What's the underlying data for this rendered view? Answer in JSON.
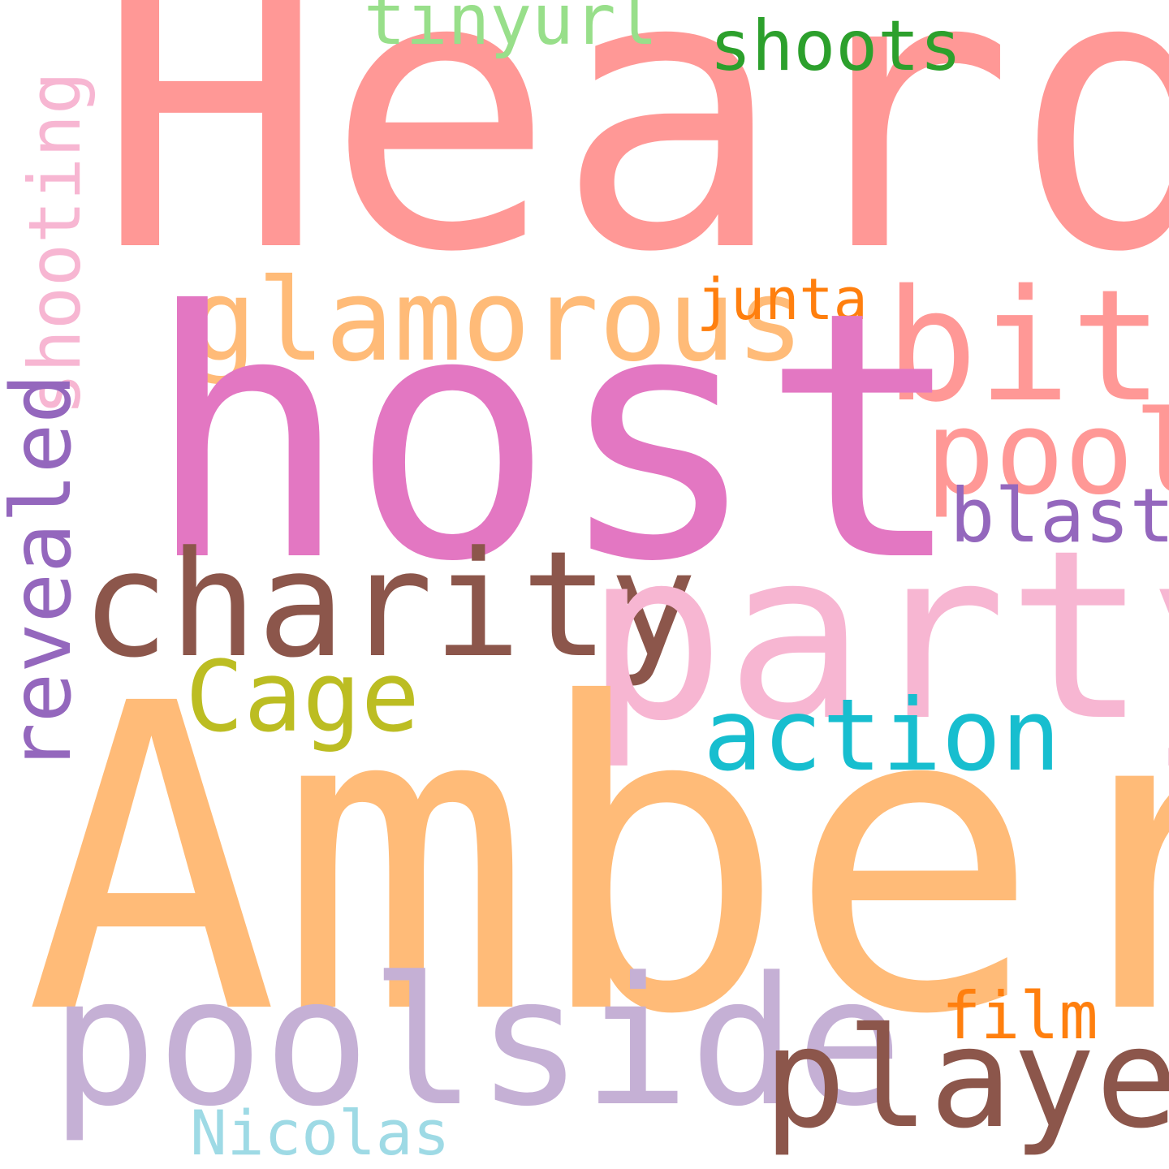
{
  "words": {
    "heard": {
      "text": "Heard",
      "color": "#ff9896"
    },
    "host": {
      "text": "host",
      "color": "#e377c2"
    },
    "amber": {
      "text": "Amber",
      "color": "#ffbb78"
    },
    "party": {
      "text": "party",
      "color": "#f7b6d2"
    },
    "poolside": {
      "text": "poolside",
      "color": "#c5b0d5"
    },
    "charity": {
      "text": "charity",
      "color": "#8c564b"
    },
    "bit": {
      "text": "bit",
      "color": "#ff9896"
    },
    "glamorous": {
      "text": "glamorous",
      "color": "#ffbb78"
    },
    "played": {
      "text": "played",
      "color": "#8c564b"
    },
    "pool": {
      "text": "pool",
      "color": "#ff9896"
    },
    "cage": {
      "text": "Cage",
      "color": "#bcbd22"
    },
    "action": {
      "text": "action",
      "color": "#17becf"
    },
    "blast": {
      "text": "blast",
      "color": "#9467bd"
    },
    "shoots": {
      "text": "shoots",
      "color": "#2ca02c"
    },
    "tinyurl": {
      "text": "tinyurl",
      "color": "#98df8a"
    },
    "junta": {
      "text": "junta",
      "color": "#ff7f0e"
    },
    "film": {
      "text": "film",
      "color": "#ff7f0e"
    },
    "nicolas": {
      "text": "Nicolas",
      "color": "#9edae5"
    },
    "shooting": {
      "text": "shooting",
      "color": "#f7b6d2"
    },
    "revealed": {
      "text": "revealed",
      "color": "#9467bd"
    }
  }
}
